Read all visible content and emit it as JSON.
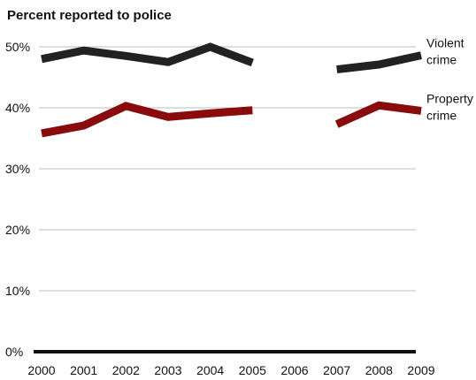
{
  "chart_data": {
    "type": "line",
    "title": "Percent reported to police",
    "categories": [
      "2000",
      "2001",
      "2002",
      "2003",
      "2004",
      "2005",
      "2006",
      "2007",
      "2008",
      "2009"
    ],
    "ylim": [
      0,
      50
    ],
    "yticks": [
      0,
      10,
      20,
      30,
      40,
      50
    ],
    "ytick_labels": [
      "0%",
      "10%",
      "20%",
      "30%",
      "40%",
      "50%"
    ],
    "grid": true,
    "series": [
      {
        "name": "Violent crime",
        "label_lines": [
          "Violent",
          "crime"
        ],
        "color": "#222222",
        "values": [
          48,
          49.4,
          48.5,
          47.5,
          50,
          47.4,
          null,
          46.3,
          47.1,
          48.6
        ]
      },
      {
        "name": "Property crime",
        "label_lines": [
          "Property",
          "crime"
        ],
        "color": "#8a0b0b",
        "values": [
          35.8,
          37.1,
          40.3,
          38.5,
          39.1,
          39.6,
          null,
          37.3,
          40.4,
          39.5
        ]
      }
    ]
  }
}
